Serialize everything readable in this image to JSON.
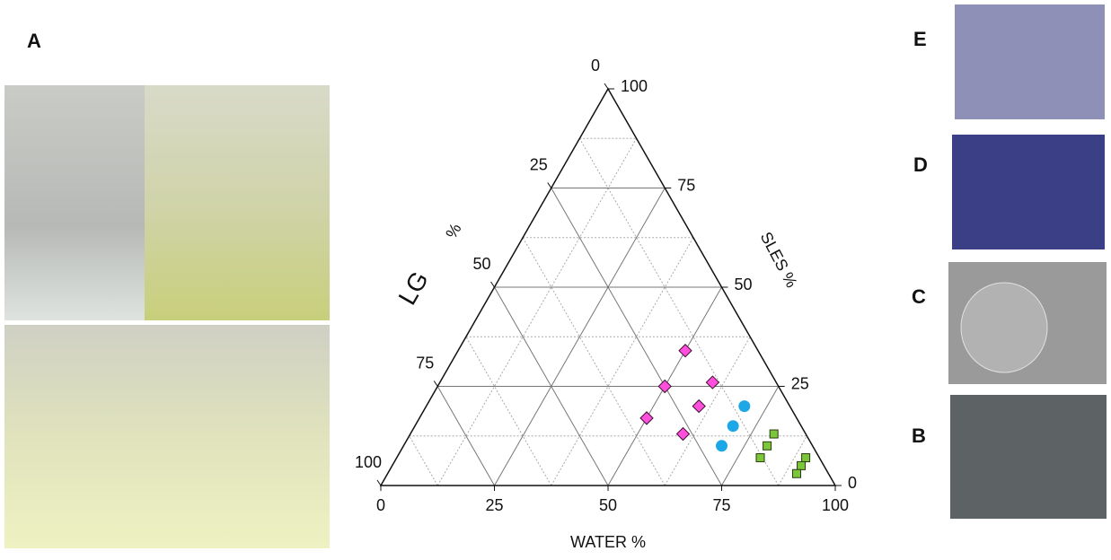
{
  "panel_labels": {
    "a": "A",
    "e": "E",
    "d": "D",
    "c": "C",
    "b": "B"
  },
  "chart_data": {
    "type": "ternary",
    "water_label": "WATER %",
    "sles_label": "SLES %",
    "lg_label": "LG",
    "lg_unit": "%",
    "water_ticks": [
      0,
      25,
      50,
      75,
      100
    ],
    "sles_ticks": [
      0,
      25,
      50,
      75,
      100
    ],
    "lg_ticks": [
      0,
      25,
      50,
      75,
      100
    ],
    "minor_grid": [
      12.5,
      37.5,
      62.5,
      87.5
    ],
    "series": [
      {
        "marker": "diamond",
        "color": "#ff4fdc",
        "water": [
          50,
          60,
          50,
          60,
          50,
          60
        ],
        "sles": [
          34,
          26,
          25,
          20,
          17,
          13
        ],
        "lg": [
          16,
          14,
          25,
          20,
          33,
          27
        ]
      },
      {
        "marker": "circle",
        "color": "#1ca8e6",
        "water": [
          70,
          70,
          70
        ],
        "sles": [
          20,
          15,
          10
        ],
        "lg": [
          10,
          15,
          20
        ]
      },
      {
        "marker": "square",
        "color": "#7cc63a",
        "water": [
          80,
          80,
          80,
          90,
          90,
          90
        ],
        "sles": [
          13,
          10,
          7,
          7,
          5,
          3
        ],
        "lg": [
          7,
          10,
          13,
          3,
          5,
          7
        ]
      }
    ]
  }
}
